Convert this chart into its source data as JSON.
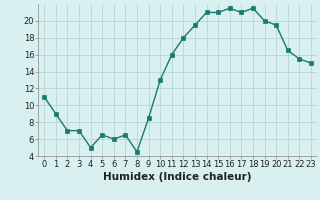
{
  "x": [
    0,
    1,
    2,
    3,
    4,
    5,
    6,
    7,
    8,
    9,
    10,
    11,
    12,
    13,
    14,
    15,
    16,
    17,
    18,
    19,
    20,
    21,
    22,
    23
  ],
  "y": [
    11,
    9,
    7,
    7,
    5,
    6.5,
    6,
    6.5,
    4.5,
    8.5,
    13,
    16,
    18,
    19.5,
    21,
    21,
    21.5,
    21,
    21.5,
    20,
    19.5,
    16.5,
    15.5,
    15
  ],
  "line_color": "#1a7a6e",
  "marker": "s",
  "marker_size": 2.5,
  "bg_color": "#d8f0f0",
  "grid_color": "#b8d4d4",
  "xlabel": "Humidex (Indice chaleur)",
  "xlim": [
    -0.5,
    23.5
  ],
  "ylim": [
    4,
    22
  ],
  "yticks": [
    4,
    6,
    8,
    10,
    12,
    14,
    16,
    18,
    20
  ],
  "xticks": [
    0,
    1,
    2,
    3,
    4,
    5,
    6,
    7,
    8,
    9,
    10,
    11,
    12,
    13,
    14,
    15,
    16,
    17,
    18,
    19,
    20,
    21,
    22,
    23
  ],
  "xtick_labels": [
    "0",
    "1",
    "2",
    "3",
    "4",
    "5",
    "6",
    "7",
    "8",
    "9",
    "10",
    "11",
    "12",
    "13",
    "14",
    "15",
    "16",
    "17",
    "18",
    "19",
    "20",
    "21",
    "22",
    "23"
  ],
  "tick_fontsize": 6,
  "xlabel_fontsize": 7.5,
  "line_width": 1.0
}
